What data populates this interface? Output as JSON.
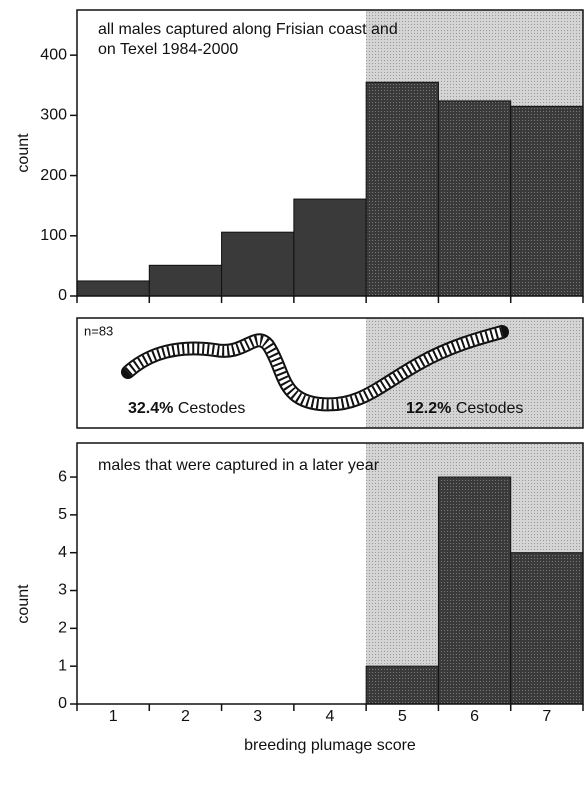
{
  "chart_data": [
    {
      "type": "bar",
      "title": "all males captured along Frisian coast and on Texel 1984-2000",
      "y_label": "count",
      "values": [
        25,
        51,
        106,
        161,
        355,
        324,
        315
      ],
      "color": "#3a3a3a",
      "ylim": [
        0,
        475
      ],
      "yticks": [
        0,
        100,
        200,
        300,
        400
      ]
    },
    {
      "type": "annotation",
      "n": "n=83",
      "left_value": "32.4%",
      "left_label": "Cestodes",
      "right_value": "12.2%",
      "right_label": "Cestodes"
    },
    {
      "type": "bar",
      "title": "males that were captured in a later year",
      "y_label": "count",
      "x_label": "breeding plumage score",
      "categories": [
        "1",
        "2",
        "3",
        "4",
        "5",
        "6",
        "7"
      ],
      "values": [
        0,
        0,
        0,
        0,
        1,
        6,
        4
      ],
      "color": "#3a3a3a",
      "ylim": [
        0,
        6.9
      ],
      "yticks": [
        0,
        1,
        2,
        3,
        4,
        5,
        6
      ]
    }
  ]
}
